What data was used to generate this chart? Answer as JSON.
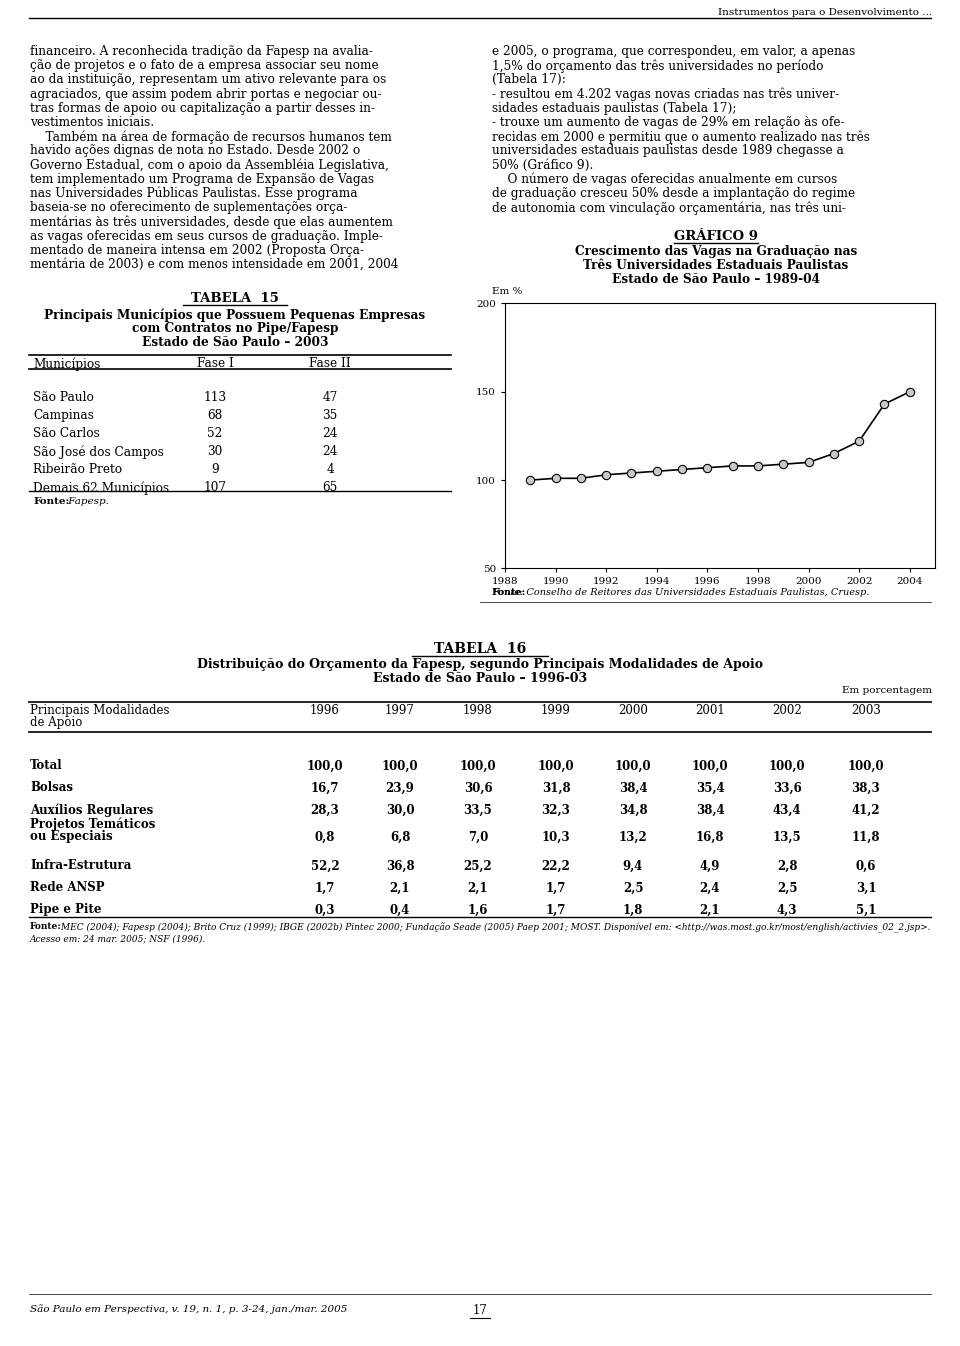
{
  "page_title": "Instrumentos para o Desenvolvimento ...",
  "left_col_text": [
    "financeiro. A reconhecida tradição da Fapesp na avalia-",
    "ção de projetos e o fato de a empresa associar seu nome",
    "ao da instituição, representam um ativo relevante para os",
    "agraciados, que assim podem abrir portas e negociar ou-",
    "tras formas de apoio ou capitalização a partir desses in-",
    "vestimentos iniciais.",
    "    Também na área de formação de recursos humanos tem",
    "havido ações dignas de nota no Estado. Desde 2002 o",
    "Governo Estadual, com o apoio da Assembléia Legislativa,",
    "tem implementado um Programa de Expansão de Vagas",
    "nas Universidades Públicas Paulistas. Esse programa",
    "baseia-se no oferecimento de suplementações orça-",
    "mentárias às três universidades, desde que elas aumentem",
    "as vagas oferecidas em seus cursos de graduação. Imple-",
    "mentado de maneira intensa em 2002 (Proposta Orça-",
    "mentária de 2003) e com menos intensidade em 2001, 2004"
  ],
  "right_col_text": [
    "e 2005, o programa, que correspondeu, em valor, a apenas",
    "1,5% do orçamento das três universidades no período",
    "(Tabela 17):",
    "- resultou em 4.202 vagas novas criadas nas três univer-",
    "sidades estaduais paulistas (Tabela 17);",
    "- trouxe um aumento de vagas de 29% em relação às ofe-",
    "recidas em 2000 e permitiu que o aumento realizado nas três",
    "universidades estaduais paulistas desde 1989 chegasse a",
    "50% (Gráfico 9).",
    "    O número de vagas oferecidas anualmente em cursos",
    "de graduação cresceu 50% desde a implantação do regime",
    "de autonomia com vinculação orçamentária, nas três uni-"
  ],
  "grafico9_title1": "GRÁFICO 9",
  "grafico9_title2": "Crescimento das Vagas na Graduação nas",
  "grafico9_title3": "Três Universidades Estaduais Paulistas",
  "grafico9_title4": "Estado de São Paulo – 1989-04",
  "grafico9_ylabel": "Em %",
  "grafico9_xlabel_values": [
    1988,
    1990,
    1992,
    1994,
    1996,
    1998,
    2000,
    2002,
    2004
  ],
  "grafico9_years": [
    1989,
    1990,
    1991,
    1992,
    1993,
    1994,
    1995,
    1996,
    1997,
    1998,
    1999,
    2000,
    2001,
    2002,
    2003,
    2004
  ],
  "grafico9_values": [
    100,
    101,
    101,
    103,
    104,
    105,
    106,
    107,
    108,
    108,
    109,
    110,
    115,
    122,
    143,
    150
  ],
  "grafico9_ylim": [
    50,
    200
  ],
  "grafico9_yticks": [
    50,
    100,
    150,
    200
  ],
  "grafico9_fonte": "Fonte: Conselho de Reitores das Universidades Estaduais Paulistas, Cruesp.",
  "tabela15_title": "TABELA  15",
  "tabela15_subtitle1": "Principais Municípios que Possuem Pequenas Empresas",
  "tabela15_subtitle2": "com Contratos no Pipe/Fapesp",
  "tabela15_subtitle3": "Estado de São Paulo – 2003",
  "tabela15_col1": "Municípios",
  "tabela15_col2": "Fase I",
  "tabela15_col3": "Fase II",
  "tabela15_rows": [
    [
      "São Paulo",
      "113",
      "47"
    ],
    [
      "Campinas",
      "68",
      "35"
    ],
    [
      "São Carlos",
      "52",
      "24"
    ],
    [
      "São José dos Campos",
      "30",
      "24"
    ],
    [
      "Ribeirão Preto",
      "9",
      "4"
    ],
    [
      "Demais 62 Municípios",
      "107",
      "65"
    ]
  ],
  "tabela15_fonte": "Fonte: Fapesp.",
  "tabela16_title": "TABELA  16",
  "tabela16_subtitle1": "Distribuição do Orçamento da Fapesp, segundo Principais Modalidades de Apoio",
  "tabela16_subtitle2": "Estado de São Paulo – 1996-03",
  "tabela16_em": "Em porcentagem",
  "tabela16_years": [
    "1996",
    "1997",
    "1998",
    "1999",
    "2000",
    "2001",
    "2002",
    "2003"
  ],
  "tabela16_rows": [
    [
      "Total",
      "100,0",
      "100,0",
      "100,0",
      "100,0",
      "100,0",
      "100,0",
      "100,0",
      "100,0",
      true
    ],
    [
      "Bolsas",
      "16,7",
      "23,9",
      "30,6",
      "31,8",
      "38,4",
      "35,4",
      "33,6",
      "38,3",
      false
    ],
    [
      "Auxílios Regulares",
      "28,3",
      "30,0",
      "33,5",
      "32,3",
      "34,8",
      "38,4",
      "43,4",
      "41,2",
      false
    ],
    [
      "Projetos Temáticos\nou Especiais",
      "0,8",
      "6,8",
      "7,0",
      "10,3",
      "13,2",
      "16,8",
      "13,5",
      "11,8",
      false
    ],
    [
      "Infra-Estrutura",
      "52,2",
      "36,8",
      "25,2",
      "22,2",
      "9,4",
      "4,9",
      "2,8",
      "0,6",
      false
    ],
    [
      "Rede ANSP",
      "1,7",
      "2,1",
      "2,1",
      "1,7",
      "2,5",
      "2,4",
      "2,5",
      "3,1",
      false
    ],
    [
      "Pipe e Pite",
      "0,3",
      "0,4",
      "1,6",
      "1,7",
      "1,8",
      "2,1",
      "4,3",
      "5,1",
      false
    ]
  ],
  "tabela16_fonte_line1": "Fonte: MEC (2004); Fapesp (2004); Brito Cruz (1999); IBGE (2002b) Pintec 2000; Fundação Seade (2005) Paep 2001; MOST. Disponível em: <http://was.most.go.kr/most/english/activies_02_2.jsp>.",
  "tabela16_fonte_line2": "Acesso em: 24 mar. 2005; NSF (1996).",
  "footer_text": "São Paulo em Perspectiva, v. 19, n. 1, p. 3-24, jan./mar. 2005",
  "footer_page": "17",
  "bg_color": "#ffffff"
}
